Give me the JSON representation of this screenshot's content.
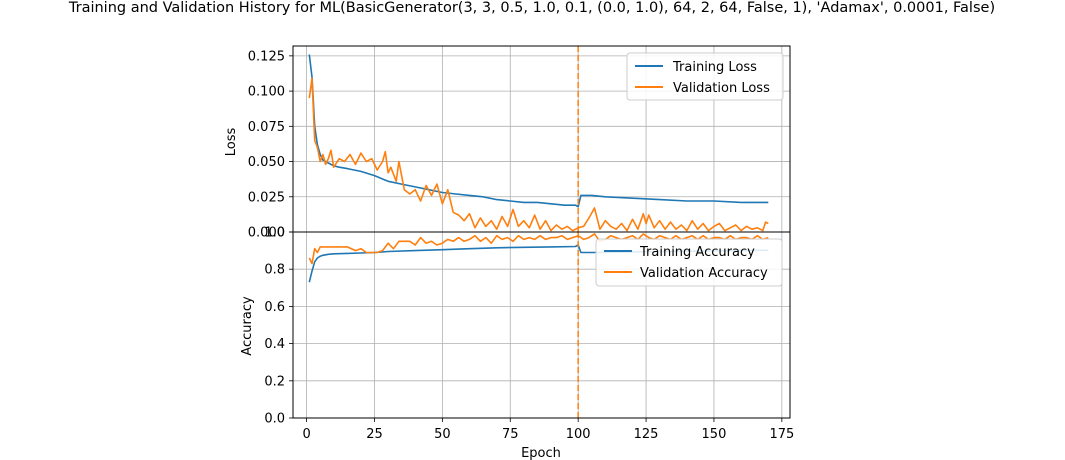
{
  "figure": {
    "title": "Training and Validation History for ML(BasicGenerator(3, 3, 0.5, 1.0, 0.1, (0.0, 1.0), 64, 2, 64, False, 1), 'Adamax', 0.0001, False)"
  },
  "colors": {
    "training": "#1f77b4",
    "validation": "#ff7f0e",
    "grid": "#b0b0b0"
  },
  "chart_data": [
    {
      "type": "line",
      "panel": "loss",
      "ylabel": "Loss",
      "xlim": [
        -5,
        178
      ],
      "ylim": [
        0,
        0.132
      ],
      "yticks": [
        0.0,
        0.025,
        0.05,
        0.075,
        0.1,
        0.125
      ],
      "ytick_labels": [
        "0.000",
        "0.025",
        "0.050",
        "0.075",
        "0.100",
        "0.125"
      ],
      "grid": true,
      "legend": "top-right",
      "vline": 100,
      "series": [
        {
          "name": "Training Loss",
          "color": "#1f77b4",
          "x": [
            1,
            2,
            3,
            4,
            5,
            6,
            8,
            10,
            12,
            15,
            20,
            25,
            30,
            35,
            40,
            45,
            50,
            55,
            60,
            65,
            70,
            75,
            80,
            85,
            90,
            95,
            99,
            100,
            101,
            105,
            110,
            120,
            130,
            140,
            150,
            160,
            170
          ],
          "y": [
            0.126,
            0.11,
            0.075,
            0.062,
            0.055,
            0.051,
            0.049,
            0.047,
            0.046,
            0.045,
            0.043,
            0.04,
            0.036,
            0.034,
            0.032,
            0.03,
            0.028,
            0.027,
            0.026,
            0.025,
            0.023,
            0.022,
            0.021,
            0.021,
            0.02,
            0.019,
            0.019,
            0.018,
            0.026,
            0.026,
            0.025,
            0.024,
            0.023,
            0.022,
            0.022,
            0.021,
            0.021
          ]
        },
        {
          "name": "Validation Loss",
          "color": "#ff7f0e",
          "x": [
            1,
            2,
            3,
            4,
            5,
            6,
            7,
            8,
            9,
            10,
            12,
            14,
            16,
            18,
            20,
            22,
            24,
            26,
            28,
            29,
            30,
            31,
            33,
            34,
            36,
            38,
            40,
            42,
            44,
            46,
            48,
            50,
            52,
            54,
            56,
            58,
            60,
            62,
            64,
            66,
            68,
            70,
            72,
            74,
            76,
            78,
            80,
            82,
            84,
            86,
            88,
            90,
            92,
            94,
            96,
            98,
            100,
            102,
            104,
            106,
            108,
            110,
            112,
            114,
            116,
            118,
            120,
            122,
            124,
            125,
            126,
            128,
            130,
            132,
            134,
            136,
            138,
            140,
            142,
            144,
            146,
            148,
            150,
            152,
            154,
            156,
            158,
            160,
            162,
            164,
            166,
            168,
            169,
            170
          ],
          "y": [
            0.095,
            0.109,
            0.065,
            0.06,
            0.05,
            0.055,
            0.048,
            0.052,
            0.058,
            0.046,
            0.052,
            0.05,
            0.055,
            0.048,
            0.056,
            0.05,
            0.052,
            0.044,
            0.05,
            0.057,
            0.042,
            0.046,
            0.036,
            0.05,
            0.03,
            0.027,
            0.03,
            0.022,
            0.033,
            0.026,
            0.034,
            0.02,
            0.03,
            0.014,
            0.012,
            0.008,
            0.013,
            0.003,
            0.01,
            0.004,
            0.008,
            0.002,
            0.011,
            0.004,
            0.016,
            0.004,
            0.008,
            0.003,
            0.012,
            0.002,
            0.008,
            0.001,
            0.005,
            0.002,
            0.004,
            0.001,
            0.003,
            0.004,
            0.01,
            0.017,
            0.002,
            0.008,
            0.004,
            0.002,
            0.006,
            0.001,
            0.009,
            0.002,
            0.013,
            0.006,
            0.012,
            0.003,
            0.008,
            0.002,
            0.007,
            0.002,
            0.005,
            0.001,
            0.008,
            0.002,
            0.006,
            0.001,
            0.004,
            0.006,
            0.001,
            0.003,
            0.005,
            0.001,
            0.004,
            0.002,
            0.003,
            0.001,
            0.007,
            0.006
          ]
        }
      ]
    },
    {
      "type": "line",
      "panel": "accuracy",
      "ylabel": "Accuracy",
      "xlabel": "Epoch",
      "xlim": [
        -5,
        178
      ],
      "ylim": [
        0,
        1.0
      ],
      "xticks": [
        0,
        25,
        50,
        75,
        100,
        125,
        150,
        175
      ],
      "xtick_labels": [
        "0",
        "25",
        "50",
        "75",
        "100",
        "125",
        "150",
        "175"
      ],
      "yticks": [
        0.0,
        0.2,
        0.4,
        0.6,
        0.8,
        1.0
      ],
      "ytick_labels": [
        "0.0",
        "0.2",
        "0.4",
        "0.6",
        "0.8",
        "1.0"
      ],
      "grid": true,
      "legend": "top-right",
      "vline": 100,
      "series": [
        {
          "name": "Training Accuracy",
          "color": "#1f77b4",
          "x": [
            1,
            2,
            3,
            4,
            5,
            6,
            8,
            10,
            15,
            20,
            25,
            30,
            40,
            50,
            60,
            70,
            80,
            90,
            99,
            100,
            101,
            110,
            120,
            130,
            140,
            150,
            160,
            170
          ],
          "y": [
            0.73,
            0.79,
            0.84,
            0.86,
            0.87,
            0.875,
            0.88,
            0.883,
            0.885,
            0.887,
            0.89,
            0.895,
            0.9,
            0.905,
            0.91,
            0.915,
            0.918,
            0.92,
            0.922,
            0.93,
            0.89,
            0.89,
            0.893,
            0.895,
            0.897,
            0.898,
            0.9,
            0.902
          ]
        },
        {
          "name": "Validation Accuracy",
          "color": "#ff7f0e",
          "x": [
            1,
            2,
            3,
            4,
            5,
            6,
            8,
            10,
            12,
            15,
            18,
            20,
            22,
            24,
            26,
            28,
            30,
            32,
            34,
            36,
            38,
            40,
            42,
            44,
            46,
            48,
            50,
            52,
            54,
            56,
            58,
            60,
            62,
            64,
            66,
            68,
            70,
            72,
            74,
            76,
            78,
            80,
            82,
            84,
            86,
            88,
            90,
            92,
            94,
            96,
            98,
            100,
            102,
            104,
            106,
            108,
            110,
            112,
            114,
            116,
            118,
            120,
            122,
            124,
            126,
            128,
            130,
            132,
            134,
            136,
            138,
            140,
            142,
            144,
            146,
            148,
            150,
            152,
            154,
            156,
            158,
            160,
            162,
            164,
            166,
            168,
            170
          ],
          "y": [
            0.86,
            0.83,
            0.91,
            0.89,
            0.92,
            0.92,
            0.92,
            0.92,
            0.92,
            0.92,
            0.9,
            0.91,
            0.89,
            0.89,
            0.89,
            0.9,
            0.94,
            0.91,
            0.95,
            0.95,
            0.95,
            0.93,
            0.97,
            0.94,
            0.95,
            0.93,
            0.94,
            0.96,
            0.95,
            0.97,
            0.95,
            0.96,
            0.98,
            0.95,
            0.97,
            0.94,
            0.98,
            0.96,
            0.97,
            0.95,
            0.98,
            0.96,
            0.97,
            0.96,
            0.98,
            0.96,
            0.97,
            0.97,
            0.98,
            0.96,
            0.97,
            0.98,
            0.96,
            0.97,
            0.99,
            0.95,
            0.96,
            0.98,
            0.97,
            0.96,
            0.97,
            0.98,
            0.96,
            0.99,
            0.97,
            0.96,
            0.98,
            0.97,
            0.96,
            0.98,
            0.96,
            0.97,
            0.98,
            0.96,
            0.98,
            0.96,
            0.97,
            0.97,
            0.96,
            0.98,
            0.96,
            0.97,
            0.97,
            0.96,
            0.98,
            0.96,
            0.97
          ]
        }
      ]
    }
  ]
}
